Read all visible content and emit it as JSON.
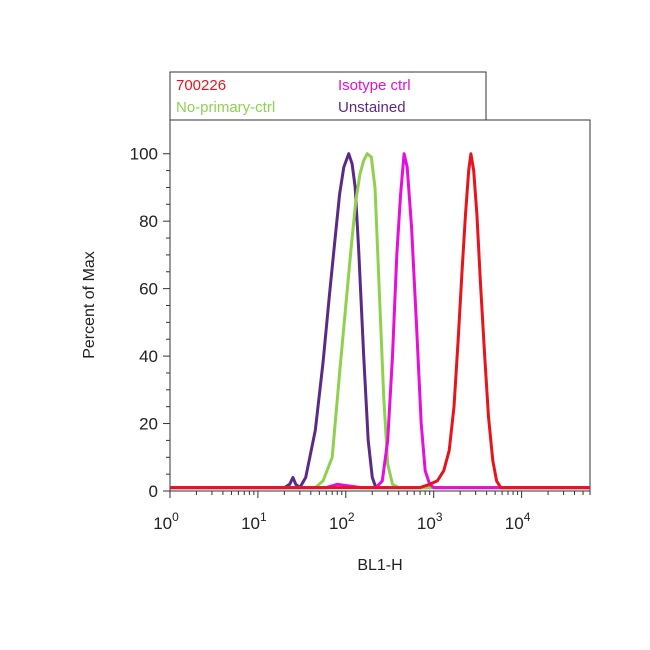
{
  "chart_data": {
    "type": "line",
    "xlabel": "BL1-H",
    "ylabel": "Percent of Max",
    "x_scale": "log",
    "xlim": [
      1,
      60000
    ],
    "ylim": [
      0,
      110
    ],
    "x_ticks": [
      {
        "value": 1,
        "base": "10",
        "exp": "0"
      },
      {
        "value": 10,
        "base": "10",
        "exp": "1"
      },
      {
        "value": 100,
        "base": "10",
        "exp": "2"
      },
      {
        "value": 1000,
        "base": "10",
        "exp": "3"
      },
      {
        "value": 10000,
        "base": "10",
        "exp": "4"
      }
    ],
    "y_ticks": [
      0,
      20,
      40,
      60,
      80,
      100
    ],
    "legend_position": "top",
    "series": [
      {
        "name": "Unstained",
        "color": "#5b2a86",
        "points": [
          [
            1,
            1
          ],
          [
            20,
            1
          ],
          [
            23,
            2
          ],
          [
            25,
            4
          ],
          [
            27,
            2
          ],
          [
            30,
            1
          ],
          [
            35,
            4
          ],
          [
            45,
            18
          ],
          [
            55,
            38
          ],
          [
            65,
            58
          ],
          [
            75,
            74
          ],
          [
            85,
            88
          ],
          [
            95,
            96
          ],
          [
            108,
            100
          ],
          [
            118,
            97
          ],
          [
            128,
            90
          ],
          [
            140,
            72
          ],
          [
            160,
            40
          ],
          [
            180,
            15
          ],
          [
            200,
            4
          ],
          [
            220,
            1
          ],
          [
            300,
            1
          ],
          [
            60000,
            1
          ]
        ]
      },
      {
        "name": "No-primary-ctrl",
        "color": "#8fd14f",
        "points": [
          [
            1,
            1
          ],
          [
            45,
            1
          ],
          [
            55,
            3
          ],
          [
            70,
            10
          ],
          [
            85,
            35
          ],
          [
            100,
            55
          ],
          [
            115,
            72
          ],
          [
            130,
            86
          ],
          [
            145,
            94
          ],
          [
            160,
            98
          ],
          [
            175,
            100
          ],
          [
            195,
            99
          ],
          [
            215,
            90
          ],
          [
            240,
            60
          ],
          [
            270,
            28
          ],
          [
            300,
            8
          ],
          [
            340,
            2
          ],
          [
            400,
            1
          ],
          [
            60000,
            1
          ]
        ]
      },
      {
        "name": "Isotype ctrl",
        "color": "#e60ed8",
        "points": [
          [
            1,
            1
          ],
          [
            60,
            1
          ],
          [
            80,
            2
          ],
          [
            150,
            1
          ],
          [
            220,
            1
          ],
          [
            260,
            3
          ],
          [
            300,
            15
          ],
          [
            340,
            40
          ],
          [
            380,
            70
          ],
          [
            420,
            88
          ],
          [
            460,
            100
          ],
          [
            500,
            96
          ],
          [
            560,
            78
          ],
          [
            640,
            48
          ],
          [
            720,
            20
          ],
          [
            800,
            6
          ],
          [
            900,
            2
          ],
          [
            1000,
            1
          ],
          [
            60000,
            1
          ]
        ]
      },
      {
        "name": "700226",
        "color": "#e8141c",
        "points": [
          [
            1,
            1
          ],
          [
            700,
            1
          ],
          [
            900,
            2
          ],
          [
            1100,
            3
          ],
          [
            1300,
            6
          ],
          [
            1500,
            12
          ],
          [
            1700,
            25
          ],
          [
            1900,
            45
          ],
          [
            2100,
            65
          ],
          [
            2300,
            82
          ],
          [
            2500,
            95
          ],
          [
            2650,
            100
          ],
          [
            2850,
            95
          ],
          [
            3100,
            82
          ],
          [
            3400,
            62
          ],
          [
            3800,
            40
          ],
          [
            4200,
            22
          ],
          [
            4700,
            9
          ],
          [
            5200,
            3
          ],
          [
            5800,
            1
          ],
          [
            60000,
            1
          ]
        ]
      }
    ],
    "legend": [
      {
        "label": "700226",
        "color": "#e8141c"
      },
      {
        "label": "Isotype ctrl",
        "color": "#e60ed8"
      },
      {
        "label": "No-primary-ctrl",
        "color": "#8fd14f"
      },
      {
        "label": "Unstained",
        "color": "#5b2a86"
      }
    ]
  }
}
